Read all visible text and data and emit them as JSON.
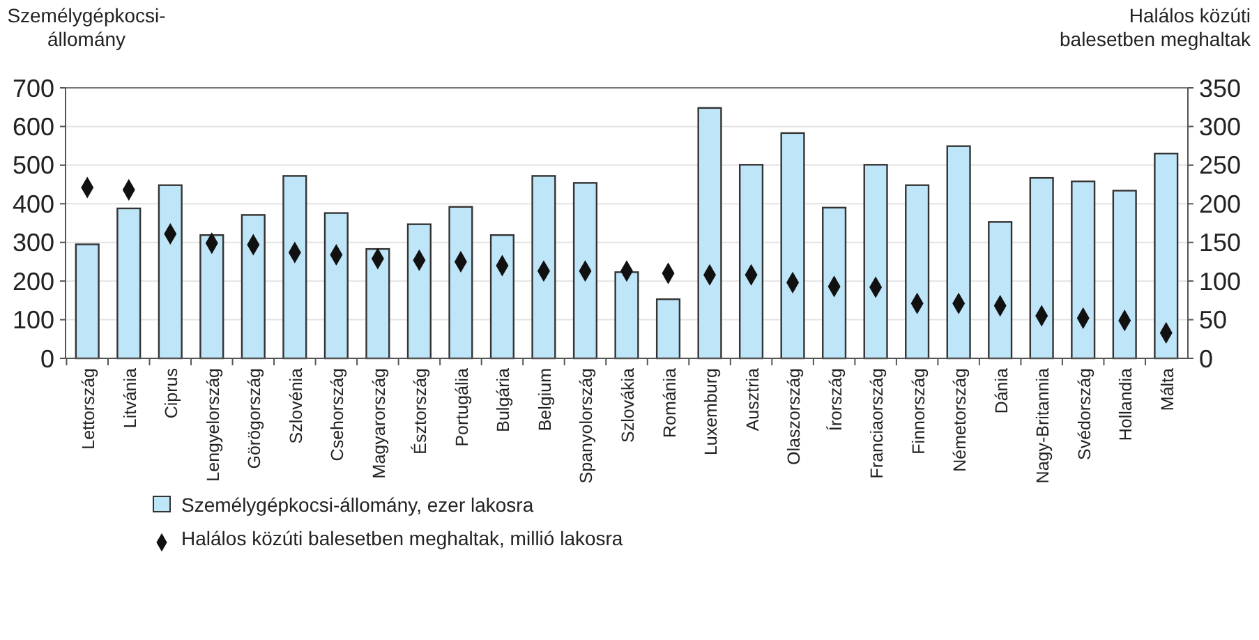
{
  "chart_data": {
    "type": "bar",
    "ylabel": "Személygépkocsi-\nállomány",
    "y2label": "Halálos közúti\nbalesetben meghaltak",
    "categories": [
      "Lettország",
      "Litvánia",
      "Ciprus",
      "Lengyelország",
      "Görögország",
      "Szlovénia",
      "Csehország",
      "Magyarország",
      "Észtország",
      "Portugália",
      "Bulgária",
      "Belgium",
      "Spanyolország",
      "Szlovákia",
      "Románia",
      "Luxemburg",
      "Ausztria",
      "Olaszország",
      "Írország",
      "Franciaország",
      "Finnország",
      "Németország",
      "Dánia",
      "Nagy-Britannia",
      "Svédország",
      "Hollandia",
      "Málta"
    ],
    "series": [
      {
        "name": "Személygépkocsi-állomány, ezer lakosra",
        "color": "#bfe5f8",
        "values": [
          295,
          388,
          448,
          319,
          371,
          472,
          376,
          283,
          347,
          392,
          319,
          472,
          454,
          223,
          153,
          648,
          501,
          583,
          390,
          501,
          448,
          549,
          353,
          467,
          458,
          434,
          530
        ]
      },
      {
        "name": "Halálos közúti balesetben meghaltak, millió lakosra",
        "type": "scatter",
        "axis": "y2",
        "color": "#111111",
        "values": [
          221,
          218,
          161,
          149,
          147,
          137,
          134,
          129,
          127,
          125,
          120,
          113,
          113,
          113,
          110,
          108,
          108,
          98,
          93,
          92,
          71,
          71,
          68,
          55,
          52,
          49,
          33
        ]
      }
    ],
    "ylim": [
      0,
      700
    ],
    "yticks": [
      0,
      100,
      200,
      300,
      400,
      500,
      600,
      700
    ],
    "y2lim": [
      0,
      350
    ],
    "y2ticks": [
      0,
      50,
      100,
      150,
      200,
      250,
      300,
      350
    ],
    "grid": "y",
    "legend": "bottom",
    "marker": "diamond"
  }
}
